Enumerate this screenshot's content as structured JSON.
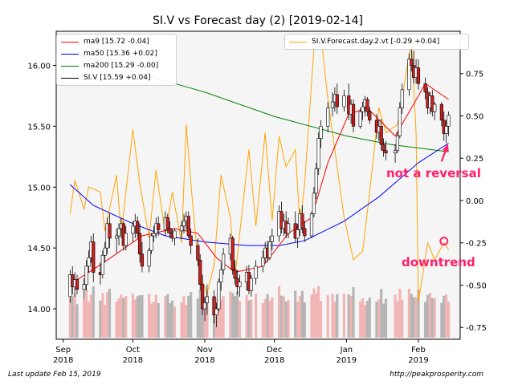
{
  "chart_data": {
    "type": "candlestick",
    "title": "SI.V vs Forecast day (2)  [2019-02-14]",
    "x_ticks": [
      "Sep\n2018",
      "Oct\n2018",
      "Nov\n2018",
      "Dec\n2018",
      "Jan\n2019",
      "Feb\n2019"
    ],
    "x_tick_dates": [
      "2018-09-01",
      "2018-10-01",
      "2018-11-01",
      "2018-12-01",
      "2019-01-01",
      "2019-02-01"
    ],
    "x_range": [
      "2018-08-29",
      "2019-02-19"
    ],
    "y_left_ticks": [
      "14.00",
      "14.50",
      "15.00",
      "15.50",
      "16.00"
    ],
    "y_left_range": [
      13.75,
      16.28
    ],
    "y_right_ticks": [
      "0.75",
      "0.50",
      "0.25",
      "0.00",
      "-0.25",
      "-0.50",
      "-0.75"
    ],
    "y_right_range": [
      -0.82,
      1.0
    ],
    "grid": false,
    "colors": {
      "ma9": "#ff0000",
      "ma50": "#0000ff",
      "ma200": "#008000",
      "price": "#000000",
      "forecast": "#ffa500",
      "annotation": "#ff1f6b",
      "candle_up": "#ffffff",
      "candle_down": "#cc1f1f",
      "volume_up": "#f2b5b5",
      "volume_down": "#b5b5b5",
      "plot_background": "#f5f5f5"
    },
    "legend_left": [
      {
        "label": "ma9 [15.72 -0.04]",
        "color": "#ff0000"
      },
      {
        "label": "ma50 [15.36 +0.02]",
        "color": "#0000ff"
      },
      {
        "label": "ma200 [15.29 -0.00]",
        "color": "#008000"
      },
      {
        "label": "SI.V [15.59 +0.04]",
        "color": "#000000"
      }
    ],
    "legend_right": [
      {
        "label": "SI.V.Forecast.day.2.vt [-0.29 +0.04]",
        "color": "#ffa500"
      }
    ],
    "annotations": [
      {
        "text": "not a reversal",
        "x": "2019-02-12",
        "y": 15.33
      },
      {
        "text": "downtrend",
        "x": "2019-02-12",
        "y_right": -0.24
      }
    ],
    "ohlc": [
      [
        "2018-09-04",
        14.1,
        14.32,
        14.05,
        14.28
      ],
      [
        "2018-09-05",
        14.28,
        14.35,
        14.12,
        14.18
      ],
      [
        "2018-09-06",
        14.18,
        14.3,
        14.1,
        14.24
      ],
      [
        "2018-09-07",
        14.24,
        14.28,
        14.12,
        14.16
      ],
      [
        "2018-09-10",
        14.16,
        14.25,
        14.08,
        14.2
      ],
      [
        "2018-09-11",
        14.2,
        14.4,
        14.15,
        14.35
      ],
      [
        "2018-09-12",
        14.35,
        14.48,
        14.3,
        14.42
      ],
      [
        "2018-09-13",
        14.42,
        14.6,
        14.38,
        14.55
      ],
      [
        "2018-09-14",
        14.55,
        14.62,
        14.22,
        14.3
      ],
      [
        "2018-09-17",
        14.3,
        14.38,
        14.2,
        14.28
      ],
      [
        "2018-09-18",
        14.28,
        14.48,
        14.25,
        14.44
      ],
      [
        "2018-09-19",
        14.44,
        14.55,
        14.38,
        14.5
      ],
      [
        "2018-09-20",
        14.5,
        14.75,
        14.45,
        14.7
      ],
      [
        "2018-09-21",
        14.7,
        14.78,
        14.5,
        14.58
      ],
      [
        "2018-09-24",
        14.58,
        14.66,
        14.46,
        14.6
      ],
      [
        "2018-09-25",
        14.6,
        14.7,
        14.52,
        14.66
      ],
      [
        "2018-09-26",
        14.66,
        14.75,
        14.58,
        14.7
      ],
      [
        "2018-09-27",
        14.7,
        14.72,
        14.48,
        14.52
      ],
      [
        "2018-09-28",
        14.52,
        14.68,
        14.48,
        14.62
      ],
      [
        "2018-10-01",
        14.62,
        14.72,
        14.55,
        14.68
      ],
      [
        "2018-10-02",
        14.68,
        14.78,
        14.58,
        14.72
      ],
      [
        "2018-10-03",
        14.72,
        14.76,
        14.58,
        14.62
      ],
      [
        "2018-10-04",
        14.62,
        14.7,
        14.38,
        14.45
      ],
      [
        "2018-10-05",
        14.45,
        14.55,
        14.3,
        14.35
      ],
      [
        "2018-10-08",
        14.35,
        14.5,
        14.3,
        14.48
      ],
      [
        "2018-10-09",
        14.48,
        14.62,
        14.45,
        14.6
      ],
      [
        "2018-10-10",
        14.6,
        14.68,
        14.55,
        14.62
      ],
      [
        "2018-10-11",
        14.62,
        14.75,
        14.58,
        14.7
      ],
      [
        "2018-10-12",
        14.7,
        14.76,
        14.6,
        14.65
      ],
      [
        "2018-10-15",
        14.65,
        14.8,
        14.6,
        14.75
      ],
      [
        "2018-10-16",
        14.75,
        14.78,
        14.62,
        14.66
      ],
      [
        "2018-10-17",
        14.66,
        14.72,
        14.58,
        14.62
      ],
      [
        "2018-10-18",
        14.62,
        14.66,
        14.55,
        14.58
      ],
      [
        "2018-10-19",
        14.58,
        14.66,
        14.52,
        14.64
      ],
      [
        "2018-10-22",
        14.64,
        14.72,
        14.58,
        14.68
      ],
      [
        "2018-10-23",
        14.68,
        14.78,
        14.62,
        14.72
      ],
      [
        "2018-10-24",
        14.72,
        14.8,
        14.65,
        14.76
      ],
      [
        "2018-10-25",
        14.76,
        14.8,
        14.58,
        14.6
      ],
      [
        "2018-10-26",
        14.6,
        14.66,
        14.45,
        14.52
      ],
      [
        "2018-10-29",
        14.52,
        14.58,
        14.35,
        14.4
      ],
      [
        "2018-10-30",
        14.4,
        14.45,
        14.15,
        14.2
      ],
      [
        "2018-10-31",
        14.2,
        14.28,
        13.95,
        14.0
      ],
      [
        "2018-11-01",
        14.0,
        14.1,
        13.9,
        14.05
      ],
      [
        "2018-11-02",
        14.05,
        14.2,
        13.95,
        14.1
      ],
      [
        "2018-11-05",
        14.1,
        14.15,
        13.88,
        13.95
      ],
      [
        "2018-11-06",
        13.95,
        14.05,
        13.85,
        14.0
      ],
      [
        "2018-11-07",
        14.0,
        14.25,
        13.98,
        14.22
      ],
      [
        "2018-11-08",
        14.22,
        14.38,
        14.15,
        14.32
      ],
      [
        "2018-11-09",
        14.32,
        14.5,
        14.28,
        14.45
      ],
      [
        "2018-11-12",
        14.45,
        14.62,
        14.4,
        14.58
      ],
      [
        "2018-11-13",
        14.58,
        14.6,
        14.28,
        14.32
      ],
      [
        "2018-11-14",
        14.32,
        14.4,
        14.2,
        14.25
      ],
      [
        "2018-11-15",
        14.25,
        14.32,
        14.12,
        14.18
      ],
      [
        "2018-11-16",
        14.18,
        14.28,
        14.1,
        14.22
      ],
      [
        "2018-11-19",
        14.22,
        14.35,
        14.15,
        14.3
      ],
      [
        "2018-11-20",
        14.3,
        14.36,
        14.12,
        14.15
      ],
      [
        "2018-11-21",
        14.15,
        14.28,
        14.1,
        14.25
      ],
      [
        "2018-11-23",
        14.25,
        14.4,
        14.2,
        14.35
      ],
      [
        "2018-11-26",
        14.35,
        14.48,
        14.3,
        14.42
      ],
      [
        "2018-11-27",
        14.42,
        14.55,
        14.38,
        14.5
      ],
      [
        "2018-11-28",
        14.5,
        14.56,
        14.38,
        14.42
      ],
      [
        "2018-11-29",
        14.42,
        14.6,
        14.4,
        14.55
      ],
      [
        "2018-11-30",
        14.55,
        14.66,
        14.48,
        14.6
      ],
      [
        "2018-12-03",
        14.6,
        14.85,
        14.55,
        14.8
      ],
      [
        "2018-12-04",
        14.8,
        14.88,
        14.62,
        14.66
      ],
      [
        "2018-12-05",
        14.66,
        14.78,
        14.6,
        14.72
      ],
      [
        "2018-12-06",
        14.72,
        14.8,
        14.58,
        14.62
      ],
      [
        "2018-12-07",
        14.62,
        14.75,
        14.58,
        14.7
      ],
      [
        "2018-12-10",
        14.7,
        14.8,
        14.55,
        14.58
      ],
      [
        "2018-12-11",
        14.58,
        14.7,
        14.5,
        14.65
      ],
      [
        "2018-12-12",
        14.65,
        14.82,
        14.6,
        14.78
      ],
      [
        "2018-12-13",
        14.78,
        14.85,
        14.62,
        14.66
      ],
      [
        "2018-12-14",
        14.66,
        14.72,
        14.55,
        14.6
      ],
      [
        "2018-12-17",
        14.6,
        14.8,
        14.58,
        14.78
      ],
      [
        "2018-12-18",
        14.78,
        15.0,
        14.75,
        14.95
      ],
      [
        "2018-12-19",
        14.95,
        15.2,
        14.9,
        15.15
      ],
      [
        "2018-12-20",
        15.15,
        15.45,
        15.1,
        15.4
      ],
      [
        "2018-12-21",
        15.4,
        15.55,
        15.32,
        15.5
      ],
      [
        "2018-12-24",
        15.5,
        15.7,
        15.45,
        15.65
      ],
      [
        "2018-12-26",
        15.65,
        15.78,
        15.58,
        15.7
      ],
      [
        "2018-12-27",
        15.7,
        15.82,
        15.62,
        15.76
      ],
      [
        "2018-12-28",
        15.76,
        15.85,
        15.6,
        15.66
      ],
      [
        "2018-12-31",
        15.66,
        15.8,
        15.62,
        15.75
      ],
      [
        "2019-01-02",
        15.75,
        15.85,
        15.55,
        15.6
      ],
      [
        "2019-01-03",
        15.6,
        15.72,
        15.52,
        15.68
      ],
      [
        "2019-01-04",
        15.68,
        15.72,
        15.45,
        15.5
      ],
      [
        "2019-01-07",
        15.5,
        15.65,
        15.48,
        15.62
      ],
      [
        "2019-01-08",
        15.62,
        15.7,
        15.55,
        15.66
      ],
      [
        "2019-01-09",
        15.66,
        15.75,
        15.58,
        15.72
      ],
      [
        "2019-01-10",
        15.72,
        15.74,
        15.58,
        15.62
      ],
      [
        "2019-01-11",
        15.62,
        15.66,
        15.52,
        15.55
      ],
      [
        "2019-01-14",
        15.55,
        15.6,
        15.4,
        15.45
      ],
      [
        "2019-01-15",
        15.45,
        15.55,
        15.38,
        15.5
      ],
      [
        "2019-01-16",
        15.5,
        15.56,
        15.3,
        15.35
      ],
      [
        "2019-01-17",
        15.35,
        15.4,
        15.25,
        15.3
      ],
      [
        "2019-01-18",
        15.3,
        15.38,
        15.22,
        15.28
      ],
      [
        "2019-01-22",
        15.28,
        15.35,
        15.2,
        15.3
      ],
      [
        "2019-01-23",
        15.3,
        15.45,
        15.28,
        15.42
      ],
      [
        "2019-01-24",
        15.42,
        15.7,
        15.4,
        15.65
      ],
      [
        "2019-01-25",
        15.65,
        15.85,
        15.6,
        15.8
      ],
      [
        "2019-01-28",
        15.8,
        16.1,
        15.75,
        16.05
      ],
      [
        "2019-01-29",
        16.05,
        16.15,
        15.95,
        16.0
      ],
      [
        "2019-01-30",
        16.0,
        16.12,
        15.85,
        15.9
      ],
      [
        "2019-01-31",
        15.9,
        16.05,
        15.85,
        15.98
      ],
      [
        "2019-02-01",
        15.98,
        16.05,
        15.8,
        15.85
      ],
      [
        "2019-02-04",
        15.85,
        15.9,
        15.72,
        15.78
      ],
      [
        "2019-02-05",
        15.78,
        15.82,
        15.6,
        15.65
      ],
      [
        "2019-02-06",
        15.65,
        15.78,
        15.6,
        15.75
      ],
      [
        "2019-02-07",
        15.75,
        15.8,
        15.58,
        15.62
      ],
      [
        "2019-02-08",
        15.62,
        15.7,
        15.55,
        15.68
      ],
      [
        "2019-02-11",
        15.68,
        15.7,
        15.5,
        15.55
      ],
      [
        "2019-02-12",
        15.55,
        15.62,
        15.38,
        15.44
      ],
      [
        "2019-02-13",
        15.44,
        15.55,
        15.36,
        15.5
      ],
      [
        "2019-02-14",
        15.5,
        15.62,
        15.42,
        15.59
      ]
    ],
    "volume_scale": [
      0.25,
      0.55
    ],
    "ma9": [
      [
        "2018-09-04",
        14.2
      ],
      [
        "2018-09-20",
        14.4
      ],
      [
        "2018-10-05",
        14.6
      ],
      [
        "2018-10-19",
        14.66
      ],
      [
        "2018-10-29",
        14.62
      ],
      [
        "2018-11-06",
        14.42
      ],
      [
        "2018-11-14",
        14.3
      ],
      [
        "2018-11-26",
        14.35
      ],
      [
        "2018-12-07",
        14.62
      ],
      [
        "2018-12-17",
        14.75
      ],
      [
        "2018-12-24",
        15.2
      ],
      [
        "2019-01-02",
        15.6
      ],
      [
        "2019-01-10",
        15.65
      ],
      [
        "2019-01-22",
        15.42
      ],
      [
        "2019-01-29",
        15.65
      ],
      [
        "2019-02-04",
        15.85
      ],
      [
        "2019-02-14",
        15.72
      ]
    ],
    "ma50": [
      [
        "2018-09-04",
        15.02
      ],
      [
        "2018-09-14",
        14.85
      ],
      [
        "2018-10-01",
        14.7
      ],
      [
        "2018-10-15",
        14.6
      ],
      [
        "2018-11-01",
        14.55
      ],
      [
        "2018-11-19",
        14.52
      ],
      [
        "2018-12-03",
        14.52
      ],
      [
        "2018-12-14",
        14.56
      ],
      [
        "2018-12-31",
        14.72
      ],
      [
        "2019-01-15",
        14.92
      ],
      [
        "2019-02-01",
        15.2
      ],
      [
        "2019-02-14",
        15.36
      ]
    ],
    "ma200": [
      [
        "2018-09-04",
        16.1
      ],
      [
        "2018-09-20",
        16.02
      ],
      [
        "2018-10-10",
        15.9
      ],
      [
        "2018-11-01",
        15.78
      ],
      [
        "2018-12-01",
        15.58
      ],
      [
        "2019-01-01",
        15.42
      ],
      [
        "2019-01-20",
        15.35
      ],
      [
        "2019-02-14",
        15.29
      ]
    ],
    "forecast": [
      [
        "2018-09-04",
        -0.08
      ],
      [
        "2018-09-06",
        0.12
      ],
      [
        "2018-09-10",
        -0.05
      ],
      [
        "2018-09-12",
        0.08
      ],
      [
        "2018-09-17",
        0.05
      ],
      [
        "2018-09-19",
        -0.18
      ],
      [
        "2018-09-24",
        0.15
      ],
      [
        "2018-09-26",
        -0.2
      ],
      [
        "2018-10-01",
        0.42
      ],
      [
        "2018-10-04",
        0.1
      ],
      [
        "2018-10-08",
        -0.22
      ],
      [
        "2018-10-11",
        0.18
      ],
      [
        "2018-10-15",
        -0.2
      ],
      [
        "2018-10-18",
        0.05
      ],
      [
        "2018-10-22",
        -0.25
      ],
      [
        "2018-10-24",
        0.45
      ],
      [
        "2018-10-26",
        0.1
      ],
      [
        "2018-10-29",
        -0.35
      ],
      [
        "2018-10-31",
        -0.48
      ],
      [
        "2018-11-02",
        -0.55
      ],
      [
        "2018-11-05",
        -0.38
      ],
      [
        "2018-11-08",
        0.15
      ],
      [
        "2018-11-12",
        -0.1
      ],
      [
        "2018-11-14",
        -0.45
      ],
      [
        "2018-11-16",
        -0.2
      ],
      [
        "2018-11-20",
        0.3
      ],
      [
        "2018-11-23",
        -0.15
      ],
      [
        "2018-11-27",
        0.4
      ],
      [
        "2018-11-30",
        -0.12
      ],
      [
        "2018-12-03",
        0.38
      ],
      [
        "2018-12-06",
        0.2
      ],
      [
        "2018-12-10",
        0.3
      ],
      [
        "2018-12-12",
        -0.15
      ],
      [
        "2018-12-14",
        0.1
      ],
      [
        "2018-12-18",
        0.9
      ],
      [
        "2018-12-21",
        0.98
      ],
      [
        "2018-12-24",
        0.6
      ],
      [
        "2018-12-27",
        0.3
      ],
      [
        "2018-12-31",
        -0.1
      ],
      [
        "2019-01-04",
        -0.35
      ],
      [
        "2019-01-08",
        -0.3
      ],
      [
        "2019-01-11",
        0.05
      ],
      [
        "2019-01-15",
        0.55
      ],
      [
        "2019-01-18",
        0.4
      ],
      [
        "2019-01-23",
        0.45
      ],
      [
        "2019-01-25",
        0.6
      ],
      [
        "2019-01-29",
        0.95
      ],
      [
        "2019-01-31",
        0.4
      ],
      [
        "2019-02-01",
        -0.6
      ],
      [
        "2019-02-05",
        -0.25
      ],
      [
        "2019-02-08",
        -0.35
      ],
      [
        "2019-02-12",
        -0.25
      ],
      [
        "2019-02-14",
        -0.29
      ]
    ]
  },
  "footer": {
    "left": "Last update Feb 15, 2019",
    "right": "http://peakprosperity.com"
  }
}
